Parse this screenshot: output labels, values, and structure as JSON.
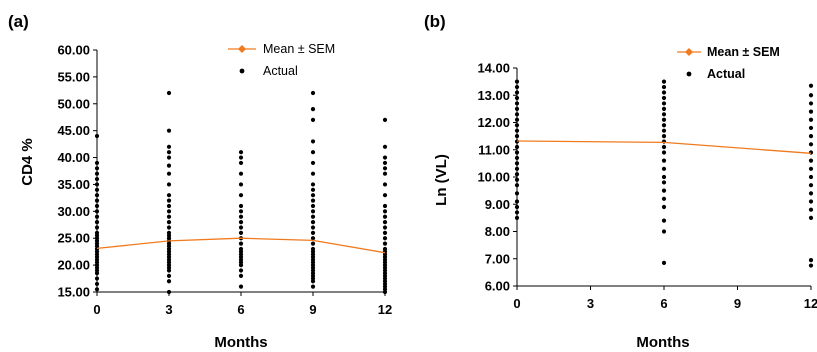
{
  "chart_data": [
    {
      "panel_label": "(a)",
      "type": "scatter",
      "xlabel": "Months",
      "ylabel": "CD4 %",
      "xlim": [
        0,
        12
      ],
      "ylim": [
        15,
        60
      ],
      "xticks": [
        "0",
        "3",
        "6",
        "9",
        "12"
      ],
      "yticks": [
        "15.00",
        "20.00",
        "25.00",
        "30.00",
        "35.00",
        "40.00",
        "45.00",
        "50.00",
        "55.00",
        "60.00"
      ],
      "grid": false,
      "legend": {
        "placement": "top-right",
        "bold": false
      },
      "series": [
        {
          "name": "Mean ± SEM",
          "type": "line",
          "color": "#F07A1E",
          "x": [
            0,
            3,
            6,
            9,
            12
          ],
          "y": [
            23.1,
            24.5,
            25.0,
            24.6,
            22.3
          ]
        },
        {
          "name": "Actual",
          "type": "scatter",
          "color": "#000000",
          "groups": [
            {
              "x": 0,
              "y": [
                15.5,
                16.5,
                17.5,
                18.5,
                19,
                19.5,
                20,
                20.5,
                21,
                21.5,
                22,
                22.5,
                23,
                23.5,
                24,
                24.5,
                25,
                25.5,
                26,
                27,
                28,
                29,
                30,
                31,
                32,
                33,
                34,
                35,
                36,
                37,
                38,
                39,
                44
              ]
            },
            {
              "x": 3,
              "y": [
                15,
                17,
                18,
                19,
                19.5,
                20,
                20.5,
                21,
                21.5,
                22,
                22.5,
                23,
                23.5,
                24,
                24.5,
                25,
                25.5,
                26,
                27,
                28,
                29,
                30,
                31,
                32,
                33,
                35,
                37,
                38.5,
                40,
                41,
                42,
                45,
                52
              ]
            },
            {
              "x": 6,
              "y": [
                16,
                18,
                19,
                20,
                20.5,
                21,
                21.5,
                22,
                22.5,
                23,
                24,
                25,
                26,
                27,
                28,
                29,
                30,
                31,
                33,
                35,
                37,
                39,
                40,
                41
              ]
            },
            {
              "x": 9,
              "y": [
                16,
                17,
                17.5,
                18,
                18.5,
                19,
                19.5,
                20,
                20.5,
                21,
                21.5,
                22,
                22.5,
                23,
                24,
                25,
                26,
                27,
                28,
                29,
                30,
                31,
                32,
                33,
                34,
                35,
                37,
                39,
                41,
                43,
                47,
                49,
                52
              ]
            },
            {
              "x": 12,
              "y": [
                15,
                15.5,
                16,
                16.5,
                17,
                17.5,
                18,
                18.5,
                19,
                19.5,
                20,
                20.5,
                21,
                21.5,
                22,
                22.5,
                23,
                24,
                25,
                26,
                27,
                28,
                29,
                30,
                31,
                33,
                35,
                37,
                38,
                39,
                40,
                42,
                47
              ]
            }
          ]
        }
      ]
    },
    {
      "panel_label": "(b)",
      "type": "scatter",
      "xlabel": "Months",
      "ylabel": "Ln (VL)",
      "xlim": [
        0,
        12
      ],
      "ylim": [
        6,
        14
      ],
      "xticks": [
        "0",
        "3",
        "6",
        "9",
        "12"
      ],
      "yticks": [
        "6.00",
        "7.00",
        "8.00",
        "9.00",
        "10.00",
        "11.00",
        "12.00",
        "13.00",
        "14.00"
      ],
      "grid": false,
      "legend": {
        "placement": "top-right",
        "bold": true
      },
      "series": [
        {
          "name": "Mean ± SEM",
          "type": "line",
          "color": "#F07A1E",
          "x": [
            0,
            6,
            12
          ],
          "y": [
            11.32,
            11.27,
            10.87
          ]
        },
        {
          "name": "Actual",
          "type": "scatter",
          "color": "#000000",
          "groups": [
            {
              "x": 0,
              "y": [
                8.5,
                8.7,
                8.9,
                9.1,
                9.4,
                9.7,
                9.9,
                10.1,
                10.3,
                10.5,
                10.7,
                10.9,
                11.1,
                11.3,
                11.5,
                11.7,
                11.9,
                12.1,
                12.3,
                12.5,
                12.7,
                12.9,
                13.1,
                13.3,
                13.5
              ]
            },
            {
              "x": 6,
              "y": [
                6.85,
                8.0,
                8.4,
                8.9,
                9.2,
                9.5,
                9.8,
                10.0,
                10.3,
                10.6,
                10.9,
                11.1,
                11.3,
                11.5,
                11.7,
                11.9,
                12.1,
                12.3,
                12.5,
                12.7,
                12.9,
                13.1,
                13.3,
                13.5
              ]
            },
            {
              "x": 12,
              "y": [
                6.75,
                6.95,
                8.5,
                8.8,
                9.1,
                9.4,
                9.7,
                10.0,
                10.3,
                10.6,
                10.9,
                11.2,
                11.5,
                11.8,
                12.1,
                12.4,
                12.7,
                13.0,
                13.35
              ]
            }
          ]
        }
      ]
    }
  ]
}
